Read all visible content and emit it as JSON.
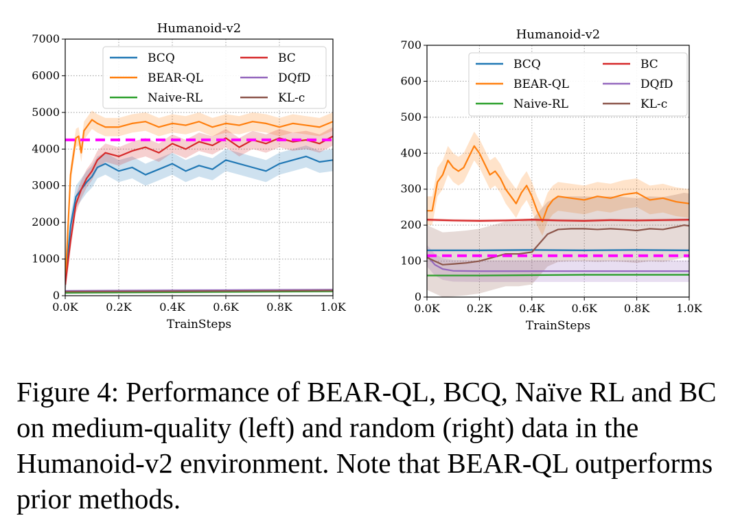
{
  "caption": {
    "label": "Figure 4:",
    "text": "Performance of BEAR-QL, BCQ, Naïve RL and BC on medium-quality (left) and random (right) data in the Humanoid-v2 environment. Note that BEAR-QL outperforms prior methods."
  },
  "colors": {
    "BCQ": "#1f77b4",
    "BEAR-QL": "#ff7f0e",
    "Naive-RL": "#2ca02c",
    "BC": "#d62728",
    "DQfD": "#9467bd",
    "KL-c": "#8c564b",
    "reference": "#ff00ff"
  },
  "chart_data": [
    {
      "type": "line",
      "title": "Humanoid-v2",
      "xlabel": "TrainSteps",
      "ylabel": "",
      "xlim": [
        0,
        1000
      ],
      "ylim": [
        0,
        7000
      ],
      "xticks": [
        0,
        200,
        400,
        600,
        800,
        1000
      ],
      "xtick_labels": [
        "0.0K",
        "0.2K",
        "0.4K",
        "0.6K",
        "0.8K",
        "1.0K"
      ],
      "yticks": [
        0,
        1000,
        2000,
        3000,
        4000,
        5000,
        6000,
        7000
      ],
      "ytick_labels": [
        "0",
        "1000",
        "2000",
        "3000",
        "4000",
        "5000",
        "6000",
        "7000"
      ],
      "grid": true,
      "legend": "top, two columns",
      "reference_line": {
        "y": 4250,
        "style": "dashed"
      },
      "series": [
        {
          "name": "BCQ",
          "x": [
            0,
            20,
            40,
            60,
            80,
            100,
            120,
            150,
            200,
            250,
            300,
            350,
            400,
            450,
            500,
            550,
            600,
            650,
            700,
            750,
            800,
            850,
            900,
            950,
            1000
          ],
          "y": [
            300,
            1900,
            2700,
            2900,
            3100,
            3250,
            3500,
            3600,
            3400,
            3500,
            3300,
            3450,
            3600,
            3400,
            3550,
            3450,
            3700,
            3600,
            3500,
            3400,
            3600,
            3700,
            3800,
            3650,
            3700
          ],
          "band": 300
        },
        {
          "name": "BEAR-QL",
          "x": [
            0,
            20,
            40,
            50,
            60,
            70,
            80,
            100,
            120,
            150,
            200,
            250,
            300,
            350,
            400,
            450,
            500,
            550,
            600,
            650,
            700,
            750,
            800,
            850,
            900,
            950,
            1000
          ],
          "y": [
            300,
            3300,
            4300,
            4350,
            3900,
            4500,
            4600,
            4800,
            4700,
            4600,
            4600,
            4700,
            4750,
            4600,
            4700,
            4650,
            4750,
            4600,
            4700,
            4650,
            4750,
            4700,
            4600,
            4700,
            4650,
            4600,
            4750
          ],
          "band": 250
        },
        {
          "name": "Naive-RL",
          "x": [
            0,
            1000
          ],
          "y": [
            80,
            120
          ],
          "band": 30
        },
        {
          "name": "BC",
          "x": [
            0,
            20,
            40,
            60,
            80,
            100,
            120,
            150,
            200,
            250,
            300,
            350,
            400,
            450,
            500,
            550,
            600,
            650,
            700,
            750,
            800,
            850,
            900,
            950,
            1000
          ],
          "y": [
            300,
            1500,
            2500,
            2900,
            3200,
            3400,
            3700,
            3900,
            3800,
            3950,
            4050,
            3900,
            4150,
            4000,
            4200,
            4100,
            4300,
            4050,
            4250,
            4150,
            4300,
            4200,
            4250,
            4150,
            4350
          ],
          "band": 250
        },
        {
          "name": "DQfD",
          "x": [
            0,
            1000
          ],
          "y": [
            130,
            160
          ],
          "band": 40
        },
        {
          "name": "KL-c",
          "x": [
            0,
            1000
          ],
          "y": [
            110,
            140
          ],
          "band": 40
        }
      ]
    },
    {
      "type": "line",
      "title": "Humanoid-v2",
      "xlabel": "TrainSteps",
      "ylabel": "",
      "xlim": [
        0,
        1000
      ],
      "ylim": [
        0,
        700
      ],
      "xticks": [
        0,
        200,
        400,
        600,
        800,
        1000
      ],
      "xtick_labels": [
        "0.0K",
        "0.2K",
        "0.4K",
        "0.6K",
        "0.8K",
        "1.0K"
      ],
      "yticks": [
        0,
        100,
        200,
        300,
        400,
        500,
        600,
        700
      ],
      "ytick_labels": [
        "0",
        "100",
        "200",
        "300",
        "400",
        "500",
        "600",
        "700"
      ],
      "grid": true,
      "legend": "top, two columns",
      "reference_line": {
        "y": 115,
        "style": "dashed"
      },
      "series": [
        {
          "name": "BCQ",
          "x": [
            0,
            200,
            400,
            600,
            800,
            1000
          ],
          "y": [
            130,
            130,
            131,
            130,
            131,
            130
          ],
          "band": 3
        },
        {
          "name": "BEAR-QL",
          "x": [
            0,
            20,
            40,
            60,
            80,
            100,
            120,
            140,
            160,
            180,
            200,
            220,
            240,
            260,
            280,
            300,
            320,
            340,
            360,
            380,
            400,
            420,
            440,
            460,
            480,
            500,
            550,
            600,
            650,
            700,
            750,
            800,
            850,
            900,
            950,
            1000
          ],
          "y": [
            240,
            240,
            320,
            340,
            380,
            360,
            350,
            360,
            390,
            420,
            400,
            370,
            340,
            350,
            330,
            300,
            280,
            260,
            290,
            310,
            280,
            240,
            210,
            250,
            270,
            280,
            275,
            270,
            280,
            275,
            285,
            290,
            270,
            275,
            265,
            260
          ],
          "band": 40
        },
        {
          "name": "Naive-RL",
          "x": [
            0,
            200,
            400,
            600,
            800,
            1000
          ],
          "y": [
            60,
            60,
            61,
            62,
            62,
            62
          ],
          "band": 3
        },
        {
          "name": "BC",
          "x": [
            0,
            100,
            200,
            300,
            400,
            500,
            600,
            700,
            800,
            900,
            1000
          ],
          "y": [
            215,
            213,
            212,
            213,
            215,
            213,
            212,
            214,
            213,
            214,
            215
          ],
          "band": 4
        },
        {
          "name": "DQfD",
          "x": [
            0,
            30,
            60,
            100,
            200,
            300,
            400,
            500,
            600,
            700,
            800,
            900,
            1000
          ],
          "y": [
            115,
            90,
            78,
            73,
            72,
            72,
            72,
            72,
            72,
            72,
            72,
            72,
            72
          ],
          "band": 30
        },
        {
          "name": "KL-c",
          "x": [
            0,
            30,
            60,
            100,
            150,
            200,
            250,
            300,
            350,
            400,
            430,
            460,
            500,
            550,
            600,
            650,
            700,
            750,
            800,
            850,
            900,
            950,
            980,
            1000
          ],
          "y": [
            110,
            100,
            90,
            92,
            95,
            100,
            110,
            120,
            120,
            125,
            150,
            175,
            188,
            190,
            190,
            188,
            190,
            188,
            185,
            190,
            188,
            195,
            200,
            198
          ],
          "band": 90
        }
      ]
    }
  ]
}
